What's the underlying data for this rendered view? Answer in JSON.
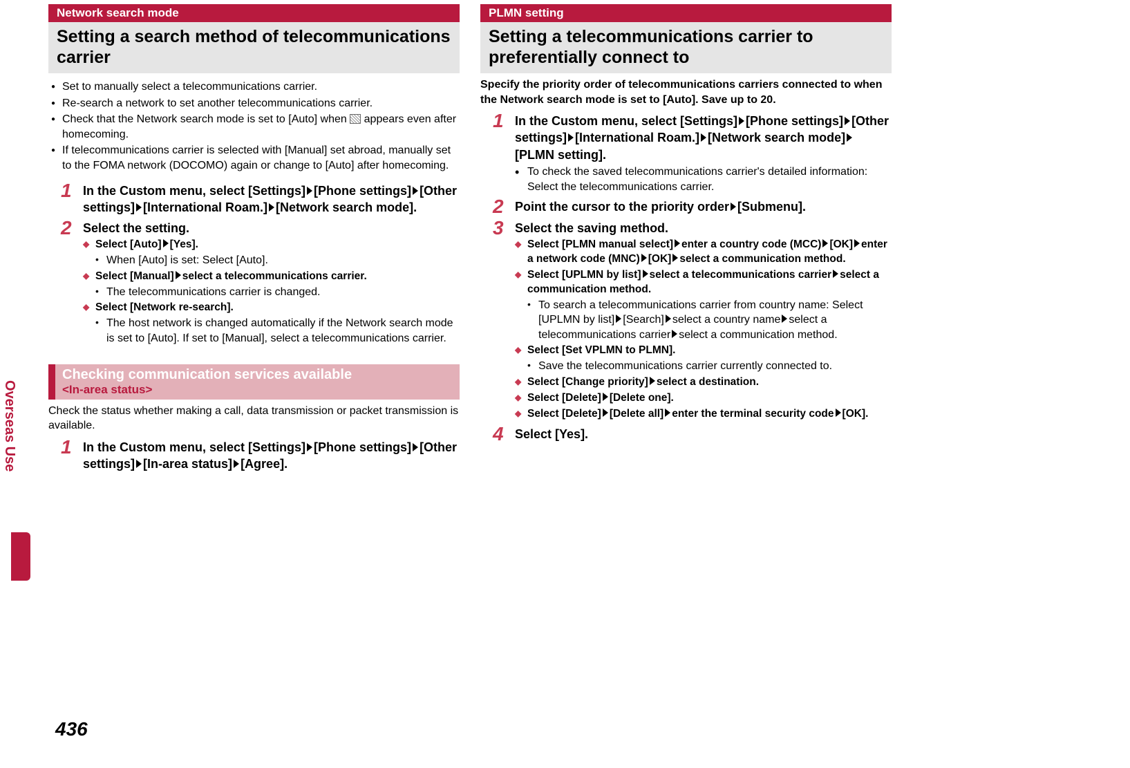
{
  "side_label": "Overseas Use",
  "page_number": "436",
  "left": {
    "tag": "Network search mode",
    "title": "Setting a search method of telecommunications carrier",
    "bullets": [
      "Set to manually select a telecommunications carrier.",
      "Re-search a network to set another telecommunications carrier.",
      "Check that the Network search mode is set to [Auto] when {ICON} appears even after homecoming.",
      "If telecommunications carrier is selected with [Manual] set abroad, manually set to the FOMA network (DOCOMO) again or change to [Auto] after homecoming."
    ],
    "step1_parts": [
      "In the Custom menu, select [Settings]",
      "[Phone settings]",
      "[Other settings]",
      "[International Roam.]",
      "[Network search mode]."
    ],
    "step2_title": "Select the setting.",
    "step2_d1_parts": [
      "Select [Auto]",
      "[Yes]."
    ],
    "step2_d1_note": "When [Auto] is set: Select [Auto].",
    "step2_d2_parts": [
      "Select [Manual]",
      "select a telecommunications carrier."
    ],
    "step2_d2_note": "The telecommunications carrier is changed.",
    "step2_d3": "Select [Network re-search].",
    "step2_d3_note": "The host network is changed automatically if the Network search mode is set to [Auto]. If set to [Manual], select a telecommunications carrier.",
    "sub_title": "Checking communication services available",
    "sub_sub": "<In-area status>",
    "sub_para": "Check the status whether making a call, data transmission or packet transmission is available.",
    "sub_step1_parts": [
      "In the Custom menu, select [Settings]",
      "[Phone settings]",
      "[Other settings]",
      "[In-area status]",
      "[Agree]."
    ]
  },
  "right": {
    "tag": "PLMN setting",
    "title": "Setting a telecommunications carrier to preferentially connect to",
    "intro": "Specify the priority order of telecommunications carriers connected to when the Network search mode is set to [Auto]. Save up to 20.",
    "step1_parts": [
      "In the Custom menu, select [Settings]",
      "[Phone settings]",
      "[Other settings]",
      "[International Roam.]",
      "[Network search mode]",
      "[PLMN setting]."
    ],
    "step1_note": "To check the saved telecommunications carrier's detailed information: Select the telecommunications carrier.",
    "step2_parts": [
      "Point the cursor to the priority order",
      "[Submenu]."
    ],
    "step3_title": "Select the saving method.",
    "d1_parts": [
      "Select [PLMN manual select]",
      "enter a country code (MCC)",
      "[OK]",
      "enter a network code (MNC)",
      "[OK]",
      "select a communication method."
    ],
    "d2_parts": [
      "Select [UPLMN by list]",
      "select a telecommunications carrier",
      "select a communication method."
    ],
    "d2_note_parts": [
      "To search a telecommunications carrier from country name: Select [UPLMN by list]",
      "[Search]",
      "select a country name",
      "select a telecommunications carrier",
      "select a communication method."
    ],
    "d3": "Select [Set VPLMN to PLMN].",
    "d3_note": "Save the telecommunications carrier currently connected to.",
    "d4_parts": [
      "Select [Change priority]",
      "select a destination."
    ],
    "d5_parts": [
      "Select [Delete]",
      "[Delete one]."
    ],
    "d6_parts": [
      "Select [Delete]",
      "[Delete all]",
      "enter the terminal security code",
      "[OK]."
    ],
    "step4_title": "Select [Yes]."
  }
}
